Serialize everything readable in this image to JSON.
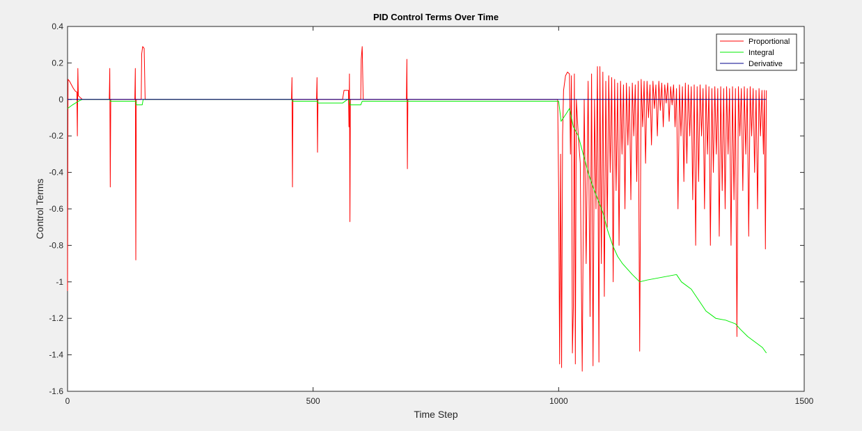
{
  "chart_data": {
    "type": "line",
    "title": "PID Control Terms Over Time",
    "xlabel": "Time Step",
    "ylabel": "Control Terms",
    "xlim": [
      0,
      1500
    ],
    "ylim": [
      -1.6,
      0.4
    ],
    "xticks": [
      0,
      500,
      1000,
      1500
    ],
    "xtick_labels": [
      "0",
      "500",
      "1000",
      "1500"
    ],
    "yticks": [
      -1.6,
      -1.4,
      -1.2,
      -1.0,
      -0.8,
      -0.6,
      -0.4,
      -0.2,
      0,
      0.2,
      0.4
    ],
    "ytick_labels": [
      "-1.6",
      "-1.4",
      "-1.2",
      "-1",
      "-0.8",
      "-0.6",
      "-0.4",
      "-0.2",
      "0",
      "0.2",
      "0.4"
    ],
    "grid": false,
    "legend_position": "top-right",
    "series": [
      {
        "name": "Proportional",
        "color": "#ff0000",
        "points": [
          [
            0,
            -1.05
          ],
          [
            1,
            0.11
          ],
          [
            4,
            0.1
          ],
          [
            8,
            0.08
          ],
          [
            12,
            0.06
          ],
          [
            16,
            0.045
          ],
          [
            19,
            0.04
          ],
          [
            20,
            -0.2
          ],
          [
            21,
            0.17
          ],
          [
            22,
            0.02
          ],
          [
            30,
            0.0
          ],
          [
            85,
            0.0
          ],
          [
            86,
            0.17
          ],
          [
            87,
            -0.48
          ],
          [
            88,
            0.0
          ],
          [
            137,
            0.0
          ],
          [
            138,
            0.17
          ],
          [
            139,
            -0.88
          ],
          [
            140,
            0.0
          ],
          [
            150,
            0.0
          ],
          [
            151,
            0.25
          ],
          [
            153,
            0.29
          ],
          [
            156,
            0.28
          ],
          [
            158,
            0.0
          ],
          [
            456,
            0.0
          ],
          [
            457,
            0.12
          ],
          [
            458,
            -0.48
          ],
          [
            459,
            0.0
          ],
          [
            507,
            0.0
          ],
          [
            508,
            0.12
          ],
          [
            509,
            -0.29
          ],
          [
            510,
            0.0
          ],
          [
            560,
            0.0
          ],
          [
            563,
            0.05
          ],
          [
            572,
            0.05
          ],
          [
            573,
            -0.15
          ],
          [
            574,
            0.14
          ],
          [
            575,
            -0.67
          ],
          [
            576,
            0.0
          ],
          [
            597,
            0.0
          ],
          [
            598,
            0.22
          ],
          [
            600,
            0.29
          ],
          [
            602,
            0.0
          ],
          [
            690,
            0.0
          ],
          [
            691,
            0.22
          ],
          [
            692,
            -0.38
          ],
          [
            693,
            0.0
          ],
          [
            998,
            0.0
          ],
          [
            1000,
            -0.5
          ],
          [
            1002,
            -1.45
          ],
          [
            1004,
            -0.3
          ],
          [
            1006,
            -1.47
          ],
          [
            1008,
            -0.2
          ],
          [
            1010,
            0.05
          ],
          [
            1014,
            0.13
          ],
          [
            1018,
            0.15
          ],
          [
            1022,
            0.14
          ],
          [
            1024,
            -0.3
          ],
          [
            1026,
            0.13
          ],
          [
            1028,
            -1.39
          ],
          [
            1030,
            -1.14
          ],
          [
            1032,
            0.14
          ],
          [
            1034,
            -1.45
          ],
          [
            1036,
            0.0
          ],
          [
            1040,
            -0.2
          ],
          [
            1044,
            -0.35
          ],
          [
            1048,
            -1.49
          ],
          [
            1052,
            0.0
          ],
          [
            1056,
            -0.9
          ],
          [
            1060,
            0.1
          ],
          [
            1064,
            -1.19
          ],
          [
            1067,
            0.14
          ],
          [
            1070,
            -1.46
          ],
          [
            1073,
            0.0
          ],
          [
            1076,
            -0.6
          ],
          [
            1079,
            0.18
          ],
          [
            1082,
            -1.44
          ],
          [
            1084,
            0.18
          ],
          [
            1087,
            -0.9
          ],
          [
            1090,
            0.15
          ],
          [
            1093,
            -1.08
          ],
          [
            1096,
            0.1
          ],
          [
            1099,
            -0.7
          ],
          [
            1102,
            0.13
          ],
          [
            1105,
            -0.4
          ],
          [
            1108,
            0.12
          ],
          [
            1111,
            -1.0
          ],
          [
            1114,
            0.11
          ],
          [
            1117,
            -0.5
          ],
          [
            1120,
            0.09
          ],
          [
            1123,
            -0.8
          ],
          [
            1126,
            0.1
          ],
          [
            1129,
            -0.3
          ],
          [
            1132,
            0.08
          ],
          [
            1135,
            -0.6
          ],
          [
            1138,
            0.09
          ],
          [
            1141,
            -0.25
          ],
          [
            1144,
            0.07
          ],
          [
            1147,
            -0.55
          ],
          [
            1150,
            0.09
          ],
          [
            1153,
            -0.2
          ],
          [
            1156,
            0.08
          ],
          [
            1159,
            -0.45
          ],
          [
            1162,
            0.1
          ],
          [
            1165,
            -1.38
          ],
          [
            1168,
            0.11
          ],
          [
            1171,
            -0.15
          ],
          [
            1174,
            0.1
          ],
          [
            1177,
            -0.35
          ],
          [
            1180,
            0.1
          ],
          [
            1183,
            -0.1
          ],
          [
            1186,
            0.08
          ],
          [
            1189,
            -0.25
          ],
          [
            1192,
            0.1
          ],
          [
            1195,
            -0.05
          ],
          [
            1198,
            0.08
          ],
          [
            1201,
            -0.2
          ],
          [
            1204,
            0.1
          ],
          [
            1207,
            -0.06
          ],
          [
            1210,
            0.09
          ],
          [
            1213,
            -0.15
          ],
          [
            1216,
            0.08
          ],
          [
            1219,
            -0.02
          ],
          [
            1222,
            0.09
          ],
          [
            1225,
            -0.12
          ],
          [
            1228,
            0.07
          ],
          [
            1231,
            -0.03
          ],
          [
            1234,
            0.08
          ],
          [
            1237,
            -0.15
          ],
          [
            1240,
            0.06
          ],
          [
            1243,
            -0.6
          ],
          [
            1246,
            0.08
          ],
          [
            1249,
            -0.2
          ],
          [
            1252,
            0.07
          ],
          [
            1255,
            -0.45
          ],
          [
            1258,
            0.09
          ],
          [
            1261,
            -0.35
          ],
          [
            1264,
            0.08
          ],
          [
            1267,
            -0.2
          ],
          [
            1270,
            0.07
          ],
          [
            1273,
            -0.55
          ],
          [
            1276,
            0.08
          ],
          [
            1279,
            -0.8
          ],
          [
            1282,
            0.07
          ],
          [
            1285,
            -0.45
          ],
          [
            1288,
            0.08
          ],
          [
            1291,
            -0.2
          ],
          [
            1294,
            0.06
          ],
          [
            1297,
            -0.6
          ],
          [
            1300,
            0.08
          ],
          [
            1303,
            -0.3
          ],
          [
            1306,
            0.07
          ],
          [
            1309,
            -0.8
          ],
          [
            1312,
            0.06
          ],
          [
            1315,
            -0.4
          ],
          [
            1318,
            0.07
          ],
          [
            1321,
            -0.3
          ],
          [
            1324,
            0.06
          ],
          [
            1327,
            -0.75
          ],
          [
            1330,
            0.07
          ],
          [
            1333,
            -0.5
          ],
          [
            1336,
            0.06
          ],
          [
            1339,
            -0.6
          ],
          [
            1342,
            0.07
          ],
          [
            1345,
            -0.3
          ],
          [
            1348,
            0.06
          ],
          [
            1351,
            -0.8
          ],
          [
            1354,
            0.07
          ],
          [
            1357,
            -0.55
          ],
          [
            1360,
            0.06
          ],
          [
            1363,
            -1.3
          ],
          [
            1366,
            0.07
          ],
          [
            1369,
            -0.2
          ],
          [
            1372,
            0.06
          ],
          [
            1375,
            -0.5
          ],
          [
            1378,
            0.07
          ],
          [
            1381,
            -0.3
          ],
          [
            1384,
            0.06
          ],
          [
            1387,
            -0.75
          ],
          [
            1390,
            0.07
          ],
          [
            1393,
            -0.2
          ],
          [
            1396,
            0.06
          ],
          [
            1399,
            -0.4
          ],
          [
            1402,
            0.05
          ],
          [
            1405,
            -0.6
          ],
          [
            1408,
            0.06
          ],
          [
            1411,
            -0.2
          ],
          [
            1414,
            0.05
          ],
          [
            1417,
            -0.3
          ],
          [
            1419,
            0.05
          ],
          [
            1421,
            -0.82
          ],
          [
            1423,
            0.05
          ]
        ]
      },
      {
        "name": "Integral",
        "color": "#00ee00",
        "points": [
          [
            0,
            -0.05
          ],
          [
            10,
            -0.03
          ],
          [
            22,
            -0.01
          ],
          [
            30,
            0.0
          ],
          [
            86,
            0.0
          ],
          [
            87,
            -0.01
          ],
          [
            139,
            -0.01
          ],
          [
            140,
            -0.03
          ],
          [
            152,
            -0.03
          ],
          [
            154,
            0.0
          ],
          [
            457,
            0.0
          ],
          [
            458,
            -0.01
          ],
          [
            509,
            -0.01
          ],
          [
            510,
            -0.02
          ],
          [
            560,
            -0.02
          ],
          [
            570,
            0.0
          ],
          [
            574,
            0.0
          ],
          [
            575,
            -0.03
          ],
          [
            597,
            -0.03
          ],
          [
            600,
            -0.01
          ],
          [
            1000,
            -0.01
          ],
          [
            1005,
            -0.12
          ],
          [
            1015,
            -0.08
          ],
          [
            1022,
            -0.05
          ],
          [
            1030,
            -0.15
          ],
          [
            1040,
            -0.2
          ],
          [
            1050,
            -0.3
          ],
          [
            1060,
            -0.4
          ],
          [
            1070,
            -0.48
          ],
          [
            1080,
            -0.55
          ],
          [
            1090,
            -0.62
          ],
          [
            1100,
            -0.72
          ],
          [
            1110,
            -0.8
          ],
          [
            1120,
            -0.86
          ],
          [
            1130,
            -0.9
          ],
          [
            1140,
            -0.93
          ],
          [
            1150,
            -0.96
          ],
          [
            1165,
            -1.0
          ],
          [
            1180,
            -0.99
          ],
          [
            1200,
            -0.98
          ],
          [
            1220,
            -0.97
          ],
          [
            1240,
            -0.96
          ],
          [
            1250,
            -1.0
          ],
          [
            1260,
            -1.02
          ],
          [
            1270,
            -1.04
          ],
          [
            1280,
            -1.08
          ],
          [
            1290,
            -1.12
          ],
          [
            1300,
            -1.16
          ],
          [
            1310,
            -1.18
          ],
          [
            1320,
            -1.2
          ],
          [
            1340,
            -1.21
          ],
          [
            1360,
            -1.23
          ],
          [
            1370,
            -1.26
          ],
          [
            1385,
            -1.3
          ],
          [
            1400,
            -1.33
          ],
          [
            1415,
            -1.36
          ],
          [
            1423,
            -1.39
          ]
        ]
      },
      {
        "name": "Derivative",
        "color": "#00008b",
        "points": [
          [
            0,
            0.0
          ],
          [
            1423,
            0.0
          ]
        ]
      }
    ]
  }
}
